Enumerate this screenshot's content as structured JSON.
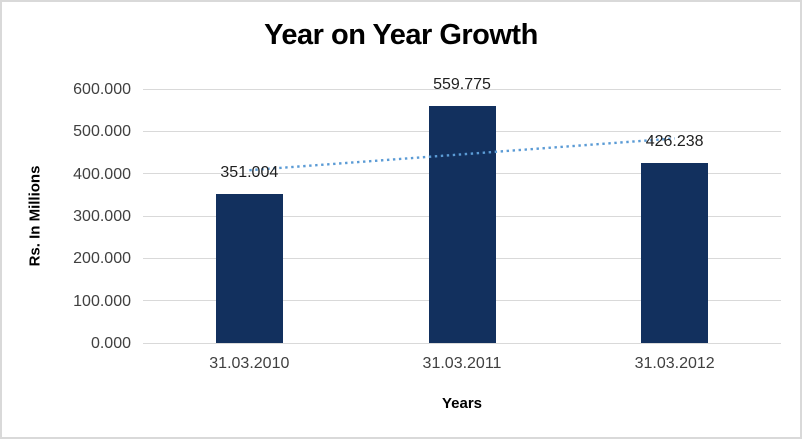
{
  "chart_data": {
    "type": "bar",
    "title": "Year on Year Growth",
    "xlabel": "Years",
    "ylabel": "Rs. In Millions",
    "categories": [
      "31.03.2010",
      "31.03.2011",
      "31.03.2012"
    ],
    "values": [
      351.004,
      559.775,
      426.238
    ],
    "value_labels": [
      "351.004",
      "559.775",
      "426.238"
    ],
    "ytick_labels": [
      "600.000",
      "500.000",
      "400.000",
      "300.000",
      "200.000",
      "100.000",
      "0.000"
    ],
    "ylim": [
      0,
      600
    ],
    "ytick_step": 100,
    "grid": true,
    "legend_position": "none",
    "bar_color": "#12305e",
    "gridline_color": "#d9d9d9",
    "trendline": {
      "type": "linear",
      "style": "dotted",
      "color": "#5b9bd5",
      "start_value": 408.2,
      "end_value": 483.2
    }
  }
}
